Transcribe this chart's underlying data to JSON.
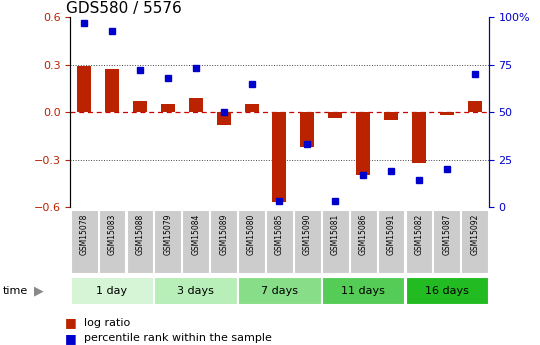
{
  "title": "GDS580 / 5576",
  "samples": [
    "GSM15078",
    "GSM15083",
    "GSM15088",
    "GSM15079",
    "GSM15084",
    "GSM15089",
    "GSM15080",
    "GSM15085",
    "GSM15090",
    "GSM15081",
    "GSM15086",
    "GSM15091",
    "GSM15082",
    "GSM15087",
    "GSM15092"
  ],
  "log_ratio": [
    0.29,
    0.27,
    0.07,
    0.05,
    0.09,
    -0.08,
    0.05,
    -0.57,
    -0.22,
    -0.04,
    -0.4,
    -0.05,
    -0.32,
    -0.02,
    0.07
  ],
  "percentile": [
    97,
    93,
    72,
    68,
    73,
    50,
    65,
    3,
    33,
    3,
    17,
    19,
    14,
    20,
    70
  ],
  "groups": [
    {
      "label": "1 day",
      "start": 0,
      "end": 3,
      "color": "#d6f5d6"
    },
    {
      "label": "3 days",
      "start": 3,
      "end": 6,
      "color": "#b8eeb8"
    },
    {
      "label": "7 days",
      "start": 6,
      "end": 9,
      "color": "#88dd88"
    },
    {
      "label": "11 days",
      "start": 9,
      "end": 12,
      "color": "#55cc55"
    },
    {
      "label": "16 days",
      "start": 12,
      "end": 15,
      "color": "#22bb22"
    }
  ],
  "ylim": [
    -0.6,
    0.6
  ],
  "y2lim": [
    0,
    100
  ],
  "yticks": [
    -0.6,
    -0.3,
    0.0,
    0.3,
    0.6
  ],
  "y2ticks": [
    0,
    25,
    50,
    75,
    100
  ],
  "bar_color": "#bb2200",
  "dot_color": "#0000cc",
  "hline_color": "#cc0000",
  "dotted_color": "#444444",
  "bg_color": "#ffffff",
  "sample_box_color": "#cccccc",
  "title_fontsize": 11,
  "axis_fontsize": 8,
  "label_fontsize": 7.5,
  "group_label_fontsize": 8
}
